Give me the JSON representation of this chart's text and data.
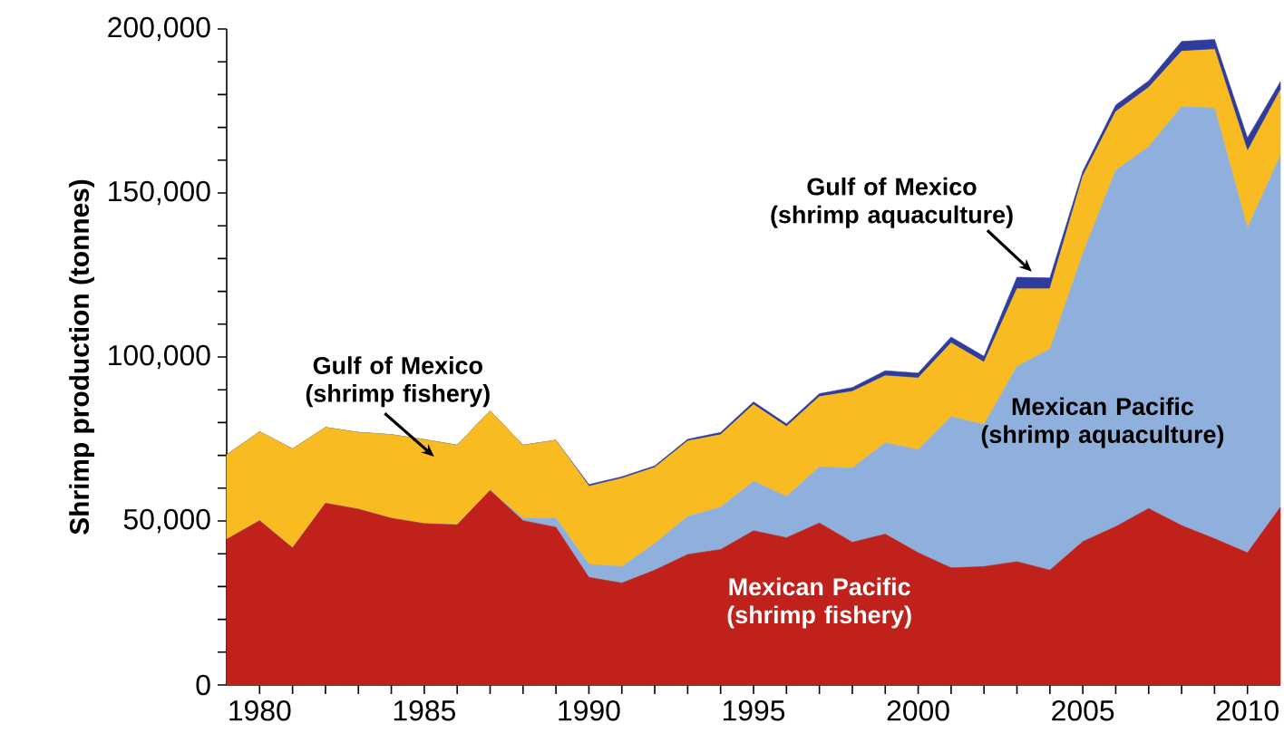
{
  "chart_data": {
    "type": "area",
    "stacked": true,
    "ylabel": "Shrimp production (tonnes)",
    "x": [
      1979,
      1980,
      1981,
      1982,
      1983,
      1984,
      1985,
      1986,
      1987,
      1988,
      1989,
      1990,
      1991,
      1992,
      1993,
      1994,
      1995,
      1996,
      1997,
      1998,
      1999,
      2000,
      2001,
      2002,
      2003,
      2004,
      2005,
      2006,
      2007,
      2008,
      2009,
      2010,
      2011
    ],
    "series": [
      {
        "name": "Mexican Pacific (shrimp fishery)",
        "color": "#c0211a",
        "values": [
          44400,
          50100,
          41800,
          55400,
          53600,
          50800,
          49200,
          48800,
          59300,
          50100,
          48100,
          32800,
          31100,
          35000,
          39800,
          41300,
          47000,
          44900,
          49400,
          43500,
          46000,
          40300,
          35700,
          36100,
          37600,
          35000,
          43700,
          48300,
          53800,
          48600,
          44600,
          40300,
          54200
        ]
      },
      {
        "name": "Mexican Pacific (shrimp aquaculture)",
        "color": "#8fb0dc",
        "values": [
          0,
          0,
          0,
          0,
          0,
          0,
          0,
          0,
          0,
          700,
          2700,
          4000,
          5000,
          8100,
          11600,
          12900,
          15100,
          12600,
          17100,
          22600,
          27900,
          31400,
          46100,
          43300,
          59500,
          67400,
          87800,
          108600,
          110300,
          127700,
          131300,
          99000,
          107200
        ]
      },
      {
        "name": "Gulf of Mexico (shrimp fishery)",
        "color": "#f8bc22",
        "values": [
          25800,
          27100,
          30200,
          23100,
          23400,
          25500,
          25600,
          24300,
          24300,
          22300,
          23800,
          23800,
          26900,
          23200,
          23000,
          22100,
          23400,
          21300,
          21400,
          23400,
          20400,
          21900,
          22500,
          19000,
          23700,
          18400,
          23600,
          17900,
          18100,
          16900,
          17900,
          23500,
          20000
        ]
      },
      {
        "name": "Gulf of Mexico (shrimp aquaculture)",
        "color": "#2e3d9c",
        "values": [
          0,
          0,
          0,
          0,
          0,
          0,
          0,
          0,
          0,
          0,
          0,
          500,
          500,
          500,
          500,
          700,
          800,
          800,
          900,
          1200,
          1500,
          1500,
          1800,
          1800,
          3500,
          3300,
          1500,
          2000,
          2000,
          3000,
          3000,
          4000,
          2500
        ]
      }
    ],
    "xlim": [
      1979,
      2011
    ],
    "xticks": [
      1980,
      {
        "value": 1981,
        "label": null
      },
      {
        "value": 1982,
        "label": null
      },
      {
        "value": 1983,
        "label": null
      },
      {
        "value": 1984,
        "label": null
      },
      1985,
      {
        "value": 1986,
        "label": null
      },
      {
        "value": 1987,
        "label": null
      },
      {
        "value": 1988,
        "label": null
      },
      {
        "value": 1989,
        "label": null
      },
      1990,
      {
        "value": 1991,
        "label": null
      },
      {
        "value": 1992,
        "label": null
      },
      {
        "value": 1993,
        "label": null
      },
      {
        "value": 1994,
        "label": null
      },
      1995,
      {
        "value": 1996,
        "label": null
      },
      {
        "value": 1997,
        "label": null
      },
      {
        "value": 1998,
        "label": null
      },
      {
        "value": 1999,
        "label": null
      },
      2000,
      {
        "value": 2001,
        "label": null
      },
      {
        "value": 2002,
        "label": null
      },
      {
        "value": 2003,
        "label": null
      },
      {
        "value": 2004,
        "label": null
      },
      2005,
      {
        "value": 2006,
        "label": null
      },
      {
        "value": 2007,
        "label": null
      },
      {
        "value": 2008,
        "label": null
      },
      {
        "value": 2009,
        "label": null
      },
      2010
    ],
    "ylim": [
      0,
      200000
    ],
    "yticks": [
      0,
      {
        "value": 10000,
        "label": null
      },
      {
        "value": 20000,
        "label": null
      },
      {
        "value": 30000,
        "label": null
      },
      {
        "value": 40000,
        "label": null
      },
      {
        "value": 50000,
        "label": "50,000"
      },
      {
        "value": 60000,
        "label": null
      },
      {
        "value": 70000,
        "label": null
      },
      {
        "value": 80000,
        "label": null
      },
      {
        "value": 90000,
        "label": null
      },
      {
        "value": 100000,
        "label": "100,000"
      },
      {
        "value": 110000,
        "label": null
      },
      {
        "value": 120000,
        "label": null
      },
      {
        "value": 130000,
        "label": null
      },
      {
        "value": 140000,
        "label": null
      },
      {
        "value": 150000,
        "label": "150,000"
      },
      {
        "value": 160000,
        "label": null
      },
      {
        "value": 170000,
        "label": null
      },
      {
        "value": 180000,
        "label": null
      },
      {
        "value": 190000,
        "label": null
      },
      {
        "value": 200000,
        "label": "200,000"
      }
    ],
    "grid": false,
    "legend": false
  }
}
